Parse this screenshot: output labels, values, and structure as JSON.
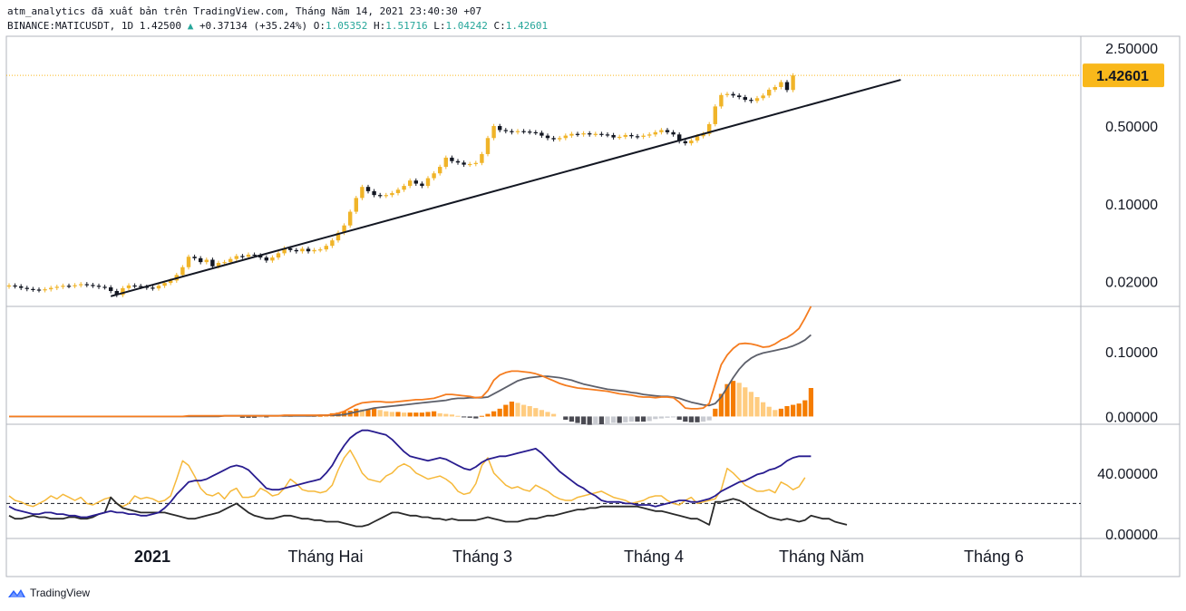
{
  "header": {
    "line1": "atm_analytics đã xuất bản trên TradingView.com, Tháng Năm 14, 2021 23:40:30 +07",
    "symbol": "BINANCE:MATICUSDT, 1D 1.42500",
    "change_arrow": "▲",
    "change": "+0.37134 (+35.24%)",
    "o_label": "O:",
    "o_val": "1.05352",
    "h_label": "H:",
    "h_val": "1.51716",
    "l_label": "L:",
    "l_val": "1.04242",
    "c_label": "C:",
    "c_val": "1.42601"
  },
  "footer": {
    "brand": "TradingView",
    "icon": "tradingview-cloud-icon"
  },
  "colors": {
    "bull": "#f0b429",
    "bear": "#131722",
    "trendline": "#131722",
    "price_label_bg": "#f9b81b",
    "macd": "#f57c1f",
    "signal": "#5d606b",
    "rsi_yellow": "#f6b93b",
    "rsi_navy": "#281c8f",
    "rsi_black": "#2a2a2a"
  },
  "chart_data": {
    "type": "candlestick",
    "symbol": "BINANCE:MATICUSDT",
    "timeframe": "1D",
    "scale": "log",
    "price_axis_ticks": [
      "2.50000",
      "0.50000",
      "0.10000",
      "0.02000"
    ],
    "last_price_label": "1.42601",
    "time_axis_labels": [
      "2021",
      "Tháng Hai",
      "Tháng 3",
      "Tháng 4",
      "Tháng Năm",
      "Tháng 6"
    ],
    "price_closes": [
      0.0185,
      0.0182,
      0.0176,
      0.0172,
      0.017,
      0.0168,
      0.0171,
      0.0176,
      0.018,
      0.0184,
      0.0183,
      0.0186,
      0.019,
      0.0187,
      0.0184,
      0.018,
      0.0178,
      0.0165,
      0.0152,
      0.0175,
      0.0185,
      0.0183,
      0.018,
      0.0177,
      0.0174,
      0.0184,
      0.0195,
      0.0205,
      0.023,
      0.027,
      0.0335,
      0.0325,
      0.03,
      0.0315,
      0.0275,
      0.0295,
      0.03,
      0.032,
      0.034,
      0.0335,
      0.035,
      0.0345,
      0.033,
      0.031,
      0.033,
      0.036,
      0.04,
      0.0385,
      0.0375,
      0.0395,
      0.0375,
      0.0385,
      0.039,
      0.042,
      0.047,
      0.055,
      0.064,
      0.085,
      0.113,
      0.142,
      0.13,
      0.12,
      0.118,
      0.12,
      0.125,
      0.134,
      0.145,
      0.162,
      0.152,
      0.145,
      0.17,
      0.188,
      0.215,
      0.26,
      0.242,
      0.235,
      0.225,
      0.228,
      0.233,
      0.28,
      0.39,
      0.5,
      0.46,
      0.45,
      0.44,
      0.45,
      0.446,
      0.44,
      0.435,
      0.41,
      0.39,
      0.38,
      0.39,
      0.41,
      0.425,
      0.42,
      0.43,
      0.42,
      0.425,
      0.42,
      0.415,
      0.395,
      0.4,
      0.415,
      0.405,
      0.4,
      0.41,
      0.42,
      0.44,
      0.46,
      0.44,
      0.42,
      0.365,
      0.35,
      0.37,
      0.405,
      0.425,
      0.52,
      0.75,
      0.95,
      0.97,
      0.94,
      0.91,
      0.86,
      0.84,
      0.89,
      0.94,
      1.06,
      1.12,
      1.24,
      1.0535,
      1.426
    ],
    "price_range_log": [
      0.012,
      3.2
    ],
    "trendline": {
      "from_index": 17,
      "from_price": 0.0148,
      "to_index": 149,
      "to_price": 1.3
    },
    "macd": {
      "axis_ticks": [
        "0.10000",
        "0.00000"
      ],
      "ylim": [
        -0.012,
        0.17
      ],
      "macd_line": [
        0,
        0,
        0,
        0,
        0,
        0,
        0,
        0,
        0,
        0,
        0,
        0,
        0,
        0,
        0,
        0,
        0,
        0,
        0,
        0,
        0,
        0,
        0,
        0,
        0,
        0,
        0,
        0,
        0,
        0,
        0.001,
        0.001,
        0.001,
        0.001,
        0.001,
        0.001,
        0.001,
        0.001,
        0.001,
        0.001,
        0.001,
        0.001,
        0.001,
        0.001,
        0.001,
        0.001,
        0.002,
        0.002,
        0.002,
        0.002,
        0.002,
        0.002,
        0.002,
        0.002,
        0.003,
        0.005,
        0.008,
        0.013,
        0.018,
        0.021,
        0.022,
        0.023,
        0.023,
        0.022,
        0.022,
        0.023,
        0.024,
        0.025,
        0.026,
        0.026,
        0.027,
        0.028,
        0.031,
        0.034,
        0.034,
        0.033,
        0.032,
        0.031,
        0.029,
        0.03,
        0.04,
        0.056,
        0.064,
        0.068,
        0.07,
        0.07,
        0.069,
        0.068,
        0.066,
        0.063,
        0.059,
        0.055,
        0.051,
        0.048,
        0.046,
        0.044,
        0.043,
        0.042,
        0.041,
        0.04,
        0.039,
        0.037,
        0.035,
        0.034,
        0.033,
        0.031,
        0.03,
        0.03,
        0.029,
        0.03,
        0.03,
        0.029,
        0.022,
        0.013,
        0.012,
        0.012,
        0.013,
        0.02,
        0.05,
        0.08,
        0.095,
        0.105,
        0.112,
        0.113,
        0.112,
        0.11,
        0.107,
        0.108,
        0.112,
        0.118,
        0.122,
        0.128,
        0.136,
        0.152,
        0.17
      ],
      "signal_line": [
        0,
        0,
        0,
        0,
        0,
        0,
        0,
        0,
        0,
        0,
        0,
        0,
        0,
        0,
        0,
        0,
        0,
        0,
        0,
        0,
        0,
        0,
        0,
        0,
        0,
        0,
        0,
        0,
        0,
        0,
        0,
        0,
        0,
        0,
        0,
        0,
        0.001,
        0.001,
        0.001,
        0.001,
        0.001,
        0.001,
        0.001,
        0.001,
        0.001,
        0.001,
        0.001,
        0.001,
        0.001,
        0.001,
        0.001,
        0.001,
        0.002,
        0.002,
        0.002,
        0.002,
        0.003,
        0.005,
        0.007,
        0.009,
        0.011,
        0.013,
        0.014,
        0.015,
        0.016,
        0.017,
        0.018,
        0.019,
        0.02,
        0.021,
        0.022,
        0.023,
        0.024,
        0.025,
        0.027,
        0.028,
        0.028,
        0.029,
        0.029,
        0.029,
        0.03,
        0.035,
        0.04,
        0.045,
        0.05,
        0.055,
        0.058,
        0.06,
        0.061,
        0.062,
        0.062,
        0.061,
        0.06,
        0.058,
        0.056,
        0.053,
        0.05,
        0.048,
        0.046,
        0.044,
        0.042,
        0.041,
        0.04,
        0.039,
        0.037,
        0.036,
        0.034,
        0.033,
        0.032,
        0.031,
        0.031,
        0.03,
        0.028,
        0.025,
        0.022,
        0.02,
        0.018,
        0.017,
        0.02,
        0.03,
        0.045,
        0.06,
        0.073,
        0.083,
        0.09,
        0.095,
        0.098,
        0.1,
        0.102,
        0.104,
        0.106,
        0.109,
        0.113,
        0.118,
        0.126
      ],
      "histogram": [
        0,
        0,
        0,
        0,
        0,
        0,
        0,
        0,
        0,
        0,
        0,
        0,
        0,
        0,
        0,
        0,
        0,
        0,
        0,
        0,
        0,
        0,
        0,
        0,
        0,
        0,
        0,
        0,
        0,
        0,
        0.001,
        0.001,
        0.001,
        0.001,
        0.001,
        0.001,
        0,
        0,
        0,
        -0.002,
        -0.002,
        -0.002,
        -0.001,
        -0.001,
        0.002,
        0.002,
        0.001,
        0.001,
        0.002,
        0.002,
        0.001,
        0.001,
        0.001,
        0.003,
        0.005,
        0.006,
        0.008,
        0.009,
        0.012,
        0.011,
        0.011,
        0.012,
        0.01,
        0.008,
        0.007,
        0.007,
        0.006,
        0.006,
        0.006,
        0.006,
        0.007,
        0.008,
        0.005,
        0.004,
        0.003,
        0.001,
        -0.001,
        -0.002,
        -0.003,
        0.001,
        0.004,
        0.008,
        0.012,
        0.018,
        0.023,
        0.021,
        0.018,
        0.016,
        0.013,
        0.01,
        0.007,
        0.004,
        0,
        -0.005,
        -0.008,
        -0.01,
        -0.012,
        -0.013,
        -0.012,
        -0.012,
        -0.011,
        -0.01,
        -0.01,
        -0.009,
        -0.008,
        -0.008,
        -0.008,
        -0.007,
        -0.004,
        -0.003,
        -0.002,
        -0.001,
        -0.005,
        -0.008,
        -0.009,
        -0.009,
        -0.008,
        -0.006,
        0.012,
        0.035,
        0.05,
        0.055,
        0.052,
        0.045,
        0.038,
        0.03,
        0.022,
        0.015,
        0.01,
        0.012,
        0.016,
        0.018,
        0.02,
        0.025,
        0.044
      ]
    },
    "oscillator": {
      "axis_ticks": [
        "40.00000",
        "0.00000"
      ],
      "ylim": [
        -3,
        72
      ],
      "dashed_level": 20,
      "yellow": [
        25,
        22,
        21,
        19,
        18,
        20,
        22,
        25,
        23,
        26,
        24,
        22,
        24,
        20,
        19,
        21,
        23,
        24,
        20,
        18,
        20,
        25,
        23,
        24,
        23,
        21,
        22,
        25,
        36,
        48,
        45,
        38,
        30,
        26,
        25,
        27,
        23,
        28,
        30,
        24,
        24,
        25,
        30,
        28,
        25,
        26,
        30,
        36,
        33,
        29,
        28,
        28,
        27,
        28,
        32,
        42,
        50,
        55,
        48,
        40,
        36,
        35,
        34,
        38,
        40,
        44,
        46,
        44,
        40,
        38,
        36,
        37,
        38,
        36,
        33,
        28,
        26,
        27,
        33,
        45,
        50,
        40,
        36,
        32,
        30,
        31,
        29,
        28,
        32,
        30,
        28,
        25,
        23,
        22,
        22,
        24,
        25,
        26,
        27,
        28,
        26,
        24,
        23,
        22,
        20,
        21,
        22,
        24,
        25,
        25,
        22,
        20,
        19,
        22,
        24,
        20,
        21,
        22,
        23,
        29,
        43,
        40,
        36,
        32,
        30,
        28,
        28,
        29,
        27,
        34,
        32,
        29,
        31,
        37
      ],
      "navy": [
        18,
        16,
        15,
        14,
        13,
        13,
        14,
        14,
        13,
        13,
        12,
        12,
        11,
        11,
        12,
        13,
        14,
        15,
        14,
        14,
        13,
        13,
        12,
        12,
        13,
        14,
        17,
        21,
        26,
        30,
        34,
        35,
        35,
        36,
        38,
        40,
        42,
        44,
        45,
        44,
        42,
        38,
        34,
        30,
        29,
        29,
        30,
        31,
        32,
        33,
        34,
        35,
        36,
        40,
        45,
        52,
        58,
        63,
        66,
        68,
        68,
        67,
        66,
        65,
        62,
        58,
        54,
        51,
        50,
        49,
        48,
        49,
        50,
        49,
        47,
        45,
        43,
        42,
        44,
        47,
        49,
        50,
        51,
        51,
        52,
        53,
        54,
        55,
        56,
        53,
        49,
        45,
        41,
        38,
        35,
        32,
        30,
        27,
        25,
        22,
        21,
        21,
        21,
        20,
        20,
        19,
        19,
        19,
        18,
        19,
        20,
        21,
        22,
        22,
        21,
        21,
        22,
        23,
        25,
        28,
        30,
        32,
        34,
        35,
        37,
        39,
        40,
        42,
        43,
        45,
        48,
        50,
        51,
        51,
        51
      ],
      "black": [
        12,
        10,
        10,
        11,
        12,
        11,
        11,
        10,
        10,
        10,
        11,
        11,
        10,
        10,
        11,
        13,
        14,
        24,
        20,
        17,
        16,
        15,
        14,
        14,
        14,
        14,
        14,
        13,
        12,
        11,
        10,
        10,
        11,
        12,
        13,
        14,
        16,
        18,
        20,
        17,
        14,
        12,
        11,
        10,
        10,
        11,
        12,
        12,
        11,
        10,
        10,
        9,
        9,
        8,
        8,
        8,
        7,
        6,
        5,
        5,
        6,
        8,
        10,
        12,
        14,
        14,
        13,
        12,
        12,
        11,
        11,
        10,
        10,
        9,
        10,
        9,
        9,
        9,
        9,
        10,
        11,
        10,
        9,
        8,
        8,
        8,
        9,
        10,
        10,
        11,
        12,
        12,
        13,
        14,
        15,
        16,
        16,
        17,
        17,
        18,
        18,
        18,
        18,
        18,
        18,
        18,
        17,
        16,
        15,
        15,
        14,
        13,
        12,
        11,
        10,
        10,
        8,
        6,
        21,
        21,
        22,
        23,
        22,
        20,
        17,
        15,
        13,
        11,
        10,
        9,
        10,
        9,
        8,
        9,
        12,
        11,
        10,
        10,
        8,
        7,
        6
      ]
    }
  }
}
